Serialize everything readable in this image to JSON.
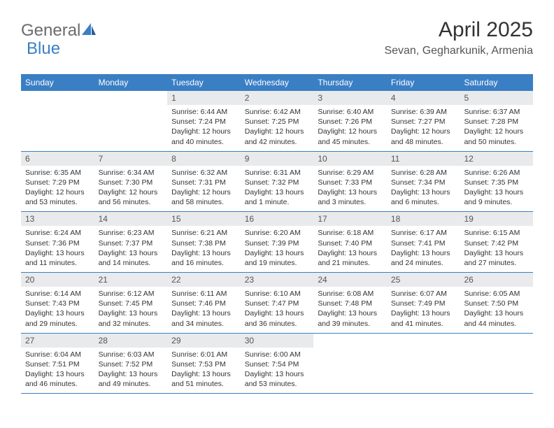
{
  "logo": {
    "part1": "General",
    "part2": "Blue"
  },
  "title": "April 2025",
  "location": "Sevan, Gegharkunik, Armenia",
  "colors": {
    "accent": "#3a7fc4",
    "header_bg": "#3a7fc4",
    "daynum_bg": "#e9eaec",
    "text": "#333333",
    "muted": "#555555"
  },
  "day_names": [
    "Sunday",
    "Monday",
    "Tuesday",
    "Wednesday",
    "Thursday",
    "Friday",
    "Saturday"
  ],
  "weeks": [
    [
      null,
      null,
      {
        "n": "1",
        "sr": "Sunrise: 6:44 AM",
        "ss": "Sunset: 7:24 PM",
        "d1": "Daylight: 12 hours",
        "d2": "and 40 minutes."
      },
      {
        "n": "2",
        "sr": "Sunrise: 6:42 AM",
        "ss": "Sunset: 7:25 PM",
        "d1": "Daylight: 12 hours",
        "d2": "and 42 minutes."
      },
      {
        "n": "3",
        "sr": "Sunrise: 6:40 AM",
        "ss": "Sunset: 7:26 PM",
        "d1": "Daylight: 12 hours",
        "d2": "and 45 minutes."
      },
      {
        "n": "4",
        "sr": "Sunrise: 6:39 AM",
        "ss": "Sunset: 7:27 PM",
        "d1": "Daylight: 12 hours",
        "d2": "and 48 minutes."
      },
      {
        "n": "5",
        "sr": "Sunrise: 6:37 AM",
        "ss": "Sunset: 7:28 PM",
        "d1": "Daylight: 12 hours",
        "d2": "and 50 minutes."
      }
    ],
    [
      {
        "n": "6",
        "sr": "Sunrise: 6:35 AM",
        "ss": "Sunset: 7:29 PM",
        "d1": "Daylight: 12 hours",
        "d2": "and 53 minutes."
      },
      {
        "n": "7",
        "sr": "Sunrise: 6:34 AM",
        "ss": "Sunset: 7:30 PM",
        "d1": "Daylight: 12 hours",
        "d2": "and 56 minutes."
      },
      {
        "n": "8",
        "sr": "Sunrise: 6:32 AM",
        "ss": "Sunset: 7:31 PM",
        "d1": "Daylight: 12 hours",
        "d2": "and 58 minutes."
      },
      {
        "n": "9",
        "sr": "Sunrise: 6:31 AM",
        "ss": "Sunset: 7:32 PM",
        "d1": "Daylight: 13 hours",
        "d2": "and 1 minute."
      },
      {
        "n": "10",
        "sr": "Sunrise: 6:29 AM",
        "ss": "Sunset: 7:33 PM",
        "d1": "Daylight: 13 hours",
        "d2": "and 3 minutes."
      },
      {
        "n": "11",
        "sr": "Sunrise: 6:28 AM",
        "ss": "Sunset: 7:34 PM",
        "d1": "Daylight: 13 hours",
        "d2": "and 6 minutes."
      },
      {
        "n": "12",
        "sr": "Sunrise: 6:26 AM",
        "ss": "Sunset: 7:35 PM",
        "d1": "Daylight: 13 hours",
        "d2": "and 9 minutes."
      }
    ],
    [
      {
        "n": "13",
        "sr": "Sunrise: 6:24 AM",
        "ss": "Sunset: 7:36 PM",
        "d1": "Daylight: 13 hours",
        "d2": "and 11 minutes."
      },
      {
        "n": "14",
        "sr": "Sunrise: 6:23 AM",
        "ss": "Sunset: 7:37 PM",
        "d1": "Daylight: 13 hours",
        "d2": "and 14 minutes."
      },
      {
        "n": "15",
        "sr": "Sunrise: 6:21 AM",
        "ss": "Sunset: 7:38 PM",
        "d1": "Daylight: 13 hours",
        "d2": "and 16 minutes."
      },
      {
        "n": "16",
        "sr": "Sunrise: 6:20 AM",
        "ss": "Sunset: 7:39 PM",
        "d1": "Daylight: 13 hours",
        "d2": "and 19 minutes."
      },
      {
        "n": "17",
        "sr": "Sunrise: 6:18 AM",
        "ss": "Sunset: 7:40 PM",
        "d1": "Daylight: 13 hours",
        "d2": "and 21 minutes."
      },
      {
        "n": "18",
        "sr": "Sunrise: 6:17 AM",
        "ss": "Sunset: 7:41 PM",
        "d1": "Daylight: 13 hours",
        "d2": "and 24 minutes."
      },
      {
        "n": "19",
        "sr": "Sunrise: 6:15 AM",
        "ss": "Sunset: 7:42 PM",
        "d1": "Daylight: 13 hours",
        "d2": "and 27 minutes."
      }
    ],
    [
      {
        "n": "20",
        "sr": "Sunrise: 6:14 AM",
        "ss": "Sunset: 7:43 PM",
        "d1": "Daylight: 13 hours",
        "d2": "and 29 minutes."
      },
      {
        "n": "21",
        "sr": "Sunrise: 6:12 AM",
        "ss": "Sunset: 7:45 PM",
        "d1": "Daylight: 13 hours",
        "d2": "and 32 minutes."
      },
      {
        "n": "22",
        "sr": "Sunrise: 6:11 AM",
        "ss": "Sunset: 7:46 PM",
        "d1": "Daylight: 13 hours",
        "d2": "and 34 minutes."
      },
      {
        "n": "23",
        "sr": "Sunrise: 6:10 AM",
        "ss": "Sunset: 7:47 PM",
        "d1": "Daylight: 13 hours",
        "d2": "and 36 minutes."
      },
      {
        "n": "24",
        "sr": "Sunrise: 6:08 AM",
        "ss": "Sunset: 7:48 PM",
        "d1": "Daylight: 13 hours",
        "d2": "and 39 minutes."
      },
      {
        "n": "25",
        "sr": "Sunrise: 6:07 AM",
        "ss": "Sunset: 7:49 PM",
        "d1": "Daylight: 13 hours",
        "d2": "and 41 minutes."
      },
      {
        "n": "26",
        "sr": "Sunrise: 6:05 AM",
        "ss": "Sunset: 7:50 PM",
        "d1": "Daylight: 13 hours",
        "d2": "and 44 minutes."
      }
    ],
    [
      {
        "n": "27",
        "sr": "Sunrise: 6:04 AM",
        "ss": "Sunset: 7:51 PM",
        "d1": "Daylight: 13 hours",
        "d2": "and 46 minutes."
      },
      {
        "n": "28",
        "sr": "Sunrise: 6:03 AM",
        "ss": "Sunset: 7:52 PM",
        "d1": "Daylight: 13 hours",
        "d2": "and 49 minutes."
      },
      {
        "n": "29",
        "sr": "Sunrise: 6:01 AM",
        "ss": "Sunset: 7:53 PM",
        "d1": "Daylight: 13 hours",
        "d2": "and 51 minutes."
      },
      {
        "n": "30",
        "sr": "Sunrise: 6:00 AM",
        "ss": "Sunset: 7:54 PM",
        "d1": "Daylight: 13 hours",
        "d2": "and 53 minutes."
      },
      null,
      null,
      null
    ]
  ]
}
